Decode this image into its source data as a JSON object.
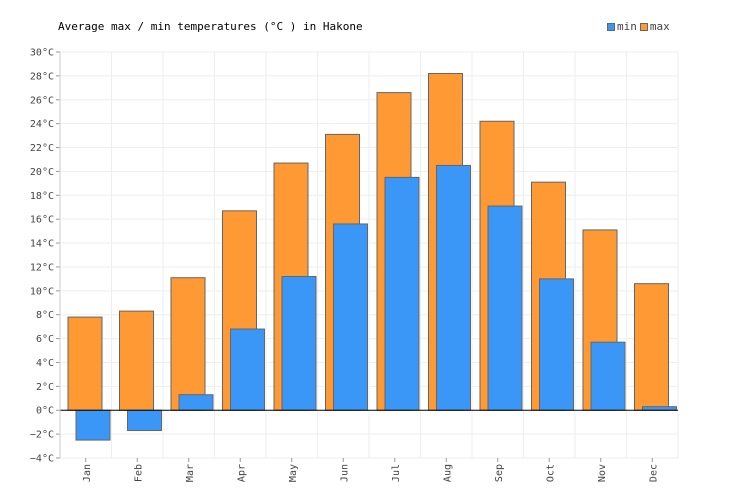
{
  "title": "Average max / min temperatures (°C ) in Hakone",
  "legend": [
    {
      "label": "min",
      "color": "#3b97f7"
    },
    {
      "label": "max",
      "color": "#ff9933"
    }
  ],
  "chart_data": {
    "type": "bar",
    "title": "Average max / min temperatures (°C ) in Hakone",
    "xlabel": "",
    "ylabel": "",
    "categories": [
      "Jan",
      "Feb",
      "Mar",
      "Apr",
      "May",
      "Jun",
      "Jul",
      "Aug",
      "Sep",
      "Oct",
      "Nov",
      "Dec"
    ],
    "series": [
      {
        "name": "max",
        "color": "#ff9933",
        "values": [
          7.8,
          8.3,
          11.1,
          16.7,
          20.7,
          23.1,
          26.6,
          28.2,
          24.2,
          19.1,
          15.1,
          10.6
        ]
      },
      {
        "name": "min",
        "color": "#3b97f7",
        "values": [
          -2.5,
          -1.7,
          1.3,
          6.8,
          11.2,
          15.6,
          19.5,
          20.5,
          17.1,
          11.0,
          5.7,
          0.3
        ]
      }
    ],
    "ylim": [
      -4,
      30
    ],
    "yticks": [
      -4,
      -2,
      0,
      2,
      4,
      6,
      8,
      10,
      12,
      14,
      16,
      18,
      20,
      22,
      24,
      26,
      28,
      30
    ],
    "ytick_labels": [
      "−4°C",
      "−2°C",
      "0°C",
      "2°C",
      "4°C",
      "6°C",
      "8°C",
      "10°C",
      "12°C",
      "14°C",
      "16°C",
      "18°C",
      "20°C",
      "22°C",
      "24°C",
      "26°C",
      "28°C",
      "30°C"
    ],
    "grid": true,
    "legend_position": "top-right"
  }
}
